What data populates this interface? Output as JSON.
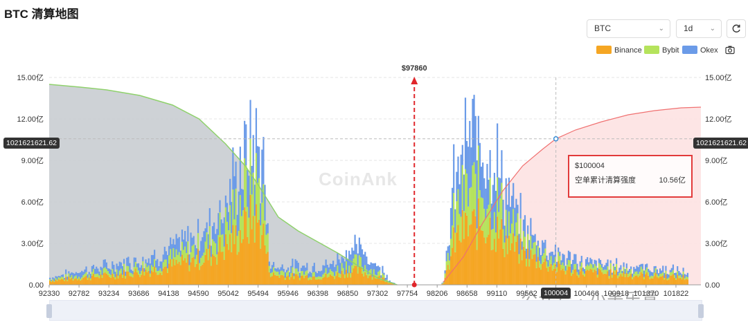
{
  "page": {
    "title": "BTC 清算地图"
  },
  "controls": {
    "symbol_value": "BTC",
    "interval_value": "1d"
  },
  "legend": [
    {
      "name": "Binance",
      "color": "#f5a623"
    },
    {
      "name": "Bybit",
      "color": "#b5e35c"
    },
    {
      "name": "Okex",
      "color": "#6b9be8"
    }
  ],
  "icons": {
    "refresh": "refresh-icon",
    "camera": "camera-icon",
    "chevron": "chevron-down-icon"
  },
  "watermark": "CoinAnk",
  "watermark_footer": "公众号 · 小美乐意",
  "marker": {
    "label": "$97860",
    "price": 97860
  },
  "crosshair": {
    "x_label": "100004",
    "y_label": "1021621621.62"
  },
  "tooltip": {
    "price": "$100004",
    "metric_label": "空单累计清算强度",
    "metric_value": "10.56亿"
  },
  "chart_data": {
    "type": "bar",
    "x_ticks": [
      "92330",
      "92782",
      "93234",
      "93686",
      "94138",
      "94590",
      "95042",
      "95494",
      "95946",
      "96398",
      "96850",
      "97302",
      "97754",
      "98206",
      "98658",
      "99110",
      "99562",
      "100004",
      "100466",
      "100918",
      "101370",
      "101822"
    ],
    "y_ticks": [
      "0.00",
      "3.00亿",
      "6.00亿",
      "9.00亿",
      "12.00亿",
      "15.00亿"
    ],
    "y_tick_values": [
      0,
      3,
      6,
      9,
      12,
      15
    ],
    "y_unit": "亿",
    "ylim": [
      0,
      15
    ],
    "xlim": [
      92330,
      102200
    ],
    "series": [
      {
        "name": "Binance",
        "color": "#f5a623"
      },
      {
        "name": "Bybit",
        "color": "#b5e35c"
      },
      {
        "name": "Okex",
        "color": "#6b9be8"
      }
    ],
    "cumulative_long": {
      "color": "#8fd16c",
      "fill": "#c9cdd2",
      "x": [
        92330,
        92800,
        93200,
        93700,
        94200,
        94600,
        95000,
        95300,
        95500,
        95800,
        96100,
        96400,
        96700,
        97000,
        97300,
        97600
      ],
      "y": [
        14.5,
        14.3,
        14.1,
        13.7,
        13.0,
        12.0,
        10.2,
        8.6,
        7.2,
        4.9,
        3.9,
        3.1,
        2.3,
        1.4,
        0.5,
        0.0
      ]
    },
    "cumulative_short": {
      "color": "#f07070",
      "fill": "#fde2e2",
      "x": [
        98300,
        98600,
        98900,
        99200,
        99500,
        99800,
        100004,
        100300,
        100700,
        101100,
        101500,
        101900,
        102200
      ],
      "y": [
        0.2,
        2.0,
        4.5,
        6.8,
        8.6,
        9.8,
        10.56,
        11.2,
        11.8,
        12.3,
        12.6,
        12.8,
        12.85
      ]
    },
    "liquidation_profile": {
      "x": [
        92330,
        92800,
        93300,
        93800,
        94100,
        94400,
        94700,
        95000,
        95200,
        95400,
        95550,
        95650,
        95700,
        96000,
        96300,
        96600,
        96800,
        97000,
        97200,
        97400,
        97500,
        98300,
        98450,
        98600,
        98750,
        98900,
        99100,
        99300,
        99500,
        99800,
        100100,
        100400,
        100800,
        101200,
        101600,
        102000
      ],
      "binance": [
        0.3,
        0.5,
        0.7,
        1.0,
        1.3,
        1.6,
        2.0,
        2.8,
        3.6,
        4.8,
        4.0,
        1.2,
        0.7,
        0.6,
        0.6,
        0.6,
        0.9,
        1.0,
        0.7,
        0.4,
        0.1,
        0.1,
        3.0,
        4.0,
        4.2,
        4.5,
        3.8,
        2.9,
        2.2,
        1.6,
        1.1,
        0.9,
        0.8,
        0.7,
        0.6,
        0.5
      ],
      "bybit": [
        0.1,
        0.2,
        0.3,
        0.4,
        0.5,
        0.7,
        0.9,
        1.5,
        2.3,
        3.0,
        2.6,
        0.6,
        0.3,
        0.3,
        0.3,
        0.3,
        0.5,
        0.6,
        0.4,
        0.2,
        0.05,
        0.05,
        1.8,
        2.4,
        2.6,
        2.7,
        2.2,
        1.4,
        0.9,
        0.6,
        0.4,
        0.3,
        0.3,
        0.3,
        0.2,
        0.2
      ],
      "okex": [
        0.1,
        0.3,
        0.4,
        0.5,
        0.6,
        0.8,
        1.0,
        1.6,
        2.1,
        2.3,
        2.4,
        0.4,
        0.3,
        0.4,
        0.4,
        0.5,
        0.9,
        1.0,
        0.6,
        0.3,
        0.05,
        0.05,
        2.3,
        3.0,
        3.5,
        3.2,
        2.4,
        1.5,
        1.0,
        0.7,
        0.5,
        0.4,
        0.3,
        0.3,
        0.3,
        0.2
      ]
    },
    "grid": true,
    "legend_position": "top-right"
  }
}
